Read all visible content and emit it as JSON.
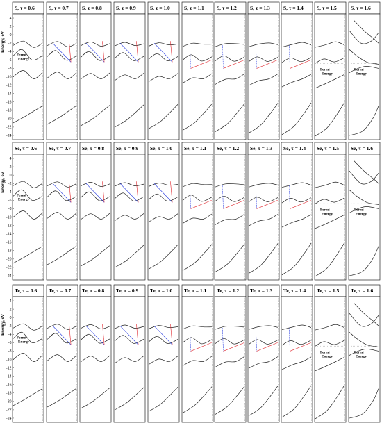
{
  "colors": {
    "band": "#222222",
    "red": "#e0242a",
    "blue": "#2b3fe0",
    "frame": "#000000",
    "fermi_line": "#888888"
  },
  "chart_data": [
    {
      "type": "line",
      "row_element": "S",
      "ylabel": "Energy, eV",
      "ylim": [
        -25,
        5
      ],
      "yticks": [
        "4",
        "2",
        "0",
        "-2",
        "-4",
        "-6",
        "-8",
        "-10",
        "-12",
        "-14",
        "-16",
        "-18",
        "-20",
        "-22",
        "-24"
      ],
      "fermi_label": [
        "Fermi",
        "Energy"
      ],
      "panels": [
        {
          "title": "S, τ = 0.6",
          "tau": 0.6
        },
        {
          "title": "S, τ = 0.7",
          "tau": 0.7
        },
        {
          "title": "S, τ = 0.8",
          "tau": 0.8
        },
        {
          "title": "S, τ = 0.9",
          "tau": 0.9
        },
        {
          "title": "S, τ = 1.0",
          "tau": 1.0
        },
        {
          "title": "S, τ = 1.1",
          "tau": 1.1
        },
        {
          "title": "S, τ = 1.2",
          "tau": 1.2
        },
        {
          "title": "S, τ = 1.3",
          "tau": 1.3
        },
        {
          "title": "S, τ = 1.4",
          "tau": 1.4
        },
        {
          "title": "S, τ = 1.5",
          "tau": 1.5
        },
        {
          "title": "S, τ = 1.6",
          "tau": 1.6
        }
      ]
    },
    {
      "type": "line",
      "row_element": "Se",
      "ylabel": "Energy, eV",
      "ylim": [
        -25,
        5
      ],
      "yticks": [
        "4",
        "2",
        "0",
        "-2",
        "-4",
        "-6",
        "-8",
        "-10",
        "-12",
        "-14",
        "-16",
        "-18",
        "-20",
        "-22",
        "-24"
      ],
      "fermi_label": [
        "Fermi",
        "Energy"
      ],
      "panels": [
        {
          "title": "Se, τ = 0.6",
          "tau": 0.6
        },
        {
          "title": "Se, τ = 0.7",
          "tau": 0.7
        },
        {
          "title": "Se, τ = 0.8",
          "tau": 0.8
        },
        {
          "title": "Se, τ = 0.9",
          "tau": 0.9
        },
        {
          "title": "Se, τ = 1.0",
          "tau": 1.0
        },
        {
          "title": "Se, τ = 1.1",
          "tau": 1.1
        },
        {
          "title": "Se, τ = 1.2",
          "tau": 1.2
        },
        {
          "title": "Se, τ = 1.3",
          "tau": 1.3
        },
        {
          "title": "Se, τ = 1.4",
          "tau": 1.4
        },
        {
          "title": "Se, τ = 1.5",
          "tau": 1.5
        },
        {
          "title": "Se, τ = 1.6",
          "tau": 1.6
        }
      ]
    },
    {
      "type": "line",
      "row_element": "Te",
      "ylabel": "Energy, eV",
      "ylim": [
        -25,
        5
      ],
      "yticks": [
        "4",
        "2",
        "0",
        "-2",
        "-4",
        "-6",
        "-8",
        "-10",
        "-12",
        "-14",
        "-16",
        "-18",
        "-20",
        "-22",
        "-24"
      ],
      "fermi_label": [
        "Fermi",
        "Energy"
      ],
      "panels": [
        {
          "title": "Te, τ = 0.6",
          "tau": 0.6
        },
        {
          "title": "Te, τ = 0.7",
          "tau": 0.7
        },
        {
          "title": "Te, τ = 0.8",
          "tau": 0.8
        },
        {
          "title": "Te, τ = 0.9",
          "tau": 0.9
        },
        {
          "title": "Te, τ = 1.0",
          "tau": 1.0
        },
        {
          "title": "Te, τ = 1.1",
          "tau": 1.1
        },
        {
          "title": "Te, τ = 1.2",
          "tau": 1.2
        },
        {
          "title": "Te, τ = 1.3",
          "tau": 1.3
        },
        {
          "title": "Te, τ = 1.4",
          "tau": 1.4
        },
        {
          "title": "Te, τ = 1.5",
          "tau": 1.5
        },
        {
          "title": "Te, τ = 1.6",
          "tau": 1.6
        }
      ]
    }
  ]
}
